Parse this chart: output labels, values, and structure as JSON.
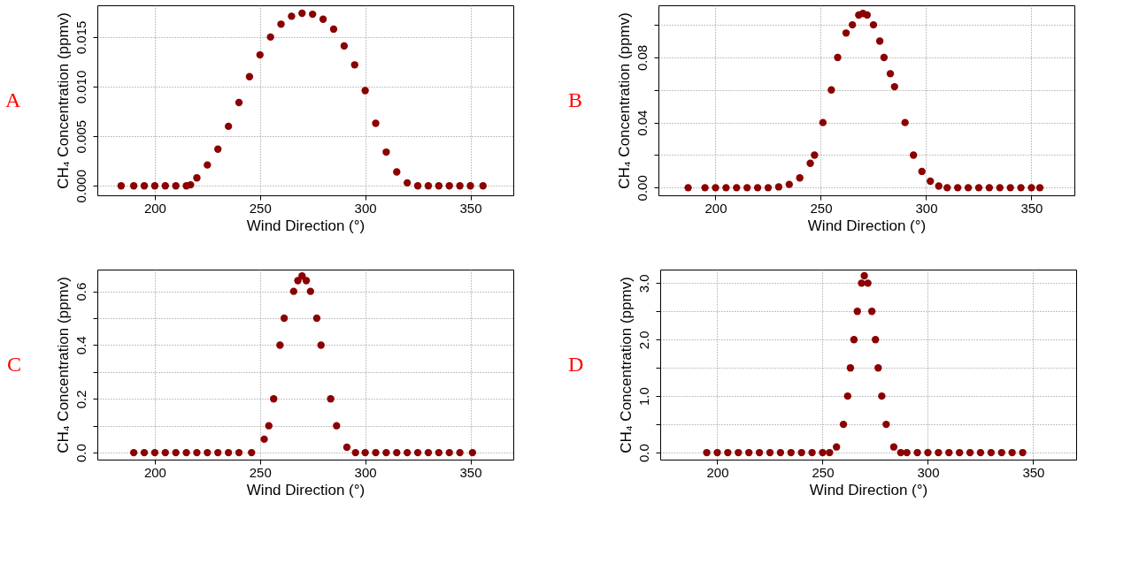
{
  "chart_data": [
    {
      "type": "scatter",
      "title": "A",
      "xlabel": "Wind Direction (°)",
      "ylabel": "CH₄ Concentration (ppmv)",
      "marker": "circle",
      "grid": true,
      "xlim": [
        172.7,
        370.4
      ],
      "xticks": [
        200,
        250,
        300,
        350
      ],
      "ylim": [
        -0.00096,
        0.0182
      ],
      "yticks": [
        {
          "value": 0,
          "label": "0.000"
        },
        {
          "value": 0.005,
          "label": "0.005"
        },
        {
          "value": 0.01,
          "label": "0.010"
        },
        {
          "value": 0.015,
          "label": "0.015"
        }
      ],
      "series": [
        {
          "color": "#8b0000",
          "x": [
            184,
            190,
            195,
            200,
            205,
            210,
            215,
            217,
            220,
            225,
            230,
            235,
            240,
            245,
            250,
            255,
            260,
            265,
            270,
            275,
            280,
            285,
            290,
            295,
            300,
            305,
            310,
            315,
            320,
            325,
            330,
            335,
            340,
            345,
            350,
            356
          ],
          "values": [
            0,
            0,
            0,
            0,
            0,
            0,
            0,
            0.0001,
            0.0008,
            0.0021,
            0.0037,
            0.006,
            0.0084,
            0.011,
            0.0132,
            0.015,
            0.0163,
            0.0171,
            0.0174,
            0.0173,
            0.0168,
            0.0158,
            0.0141,
            0.0122,
            0.0096,
            0.0063,
            0.0034,
            0.0014,
            0.0003,
            0,
            0,
            0,
            0,
            0,
            0,
            0
          ]
        }
      ]
    },
    {
      "type": "scatter",
      "title": "B",
      "xlabel": "Wind Direction (°)",
      "ylabel": "CH₄ Concentration (ppmv)",
      "marker": "circle",
      "grid": true,
      "xlim": [
        172.9,
        370.4
      ],
      "xticks": [
        200,
        250,
        300,
        350
      ],
      "ylim": [
        -0.0047,
        0.112
      ],
      "yticks": [
        {
          "value": 0,
          "label": "0.00"
        },
        {
          "value": 0.02,
          "label": null
        },
        {
          "value": 0.04,
          "label": "0.04"
        },
        {
          "value": 0.06,
          "label": null
        },
        {
          "value": 0.08,
          "label": "0.08"
        },
        {
          "value": 0.1,
          "label": null
        }
      ],
      "series": [
        {
          "color": "#8b0000",
          "x": [
            187,
            195,
            200,
            205,
            210,
            215,
            220,
            225,
            230,
            235,
            240,
            245,
            247,
            251,
            255,
            258,
            262,
            265,
            268,
            270,
            272,
            275,
            278,
            280,
            283,
            285,
            290,
            294,
            298,
            302,
            306,
            310,
            315,
            320,
            325,
            330,
            335,
            340,
            345,
            350,
            354
          ],
          "values": [
            0,
            0,
            0,
            0,
            0,
            0,
            0,
            0,
            0.0005,
            0.002,
            0.006,
            0.015,
            0.02,
            0.04,
            0.06,
            0.08,
            0.095,
            0.1,
            0.106,
            0.107,
            0.106,
            0.1,
            0.09,
            0.08,
            0.07,
            0.062,
            0.04,
            0.02,
            0.01,
            0.004,
            0.001,
            0,
            0,
            0,
            0,
            0,
            0,
            0,
            0,
            0,
            0
          ]
        }
      ]
    },
    {
      "type": "scatter",
      "title": "C",
      "xlabel": "Wind Direction (°)",
      "ylabel": "CH₄ Concentration (ppmv)",
      "marker": "circle",
      "grid": true,
      "xlim": [
        172.7,
        370.4
      ],
      "xticks": [
        200,
        250,
        300,
        350
      ],
      "ylim": [
        -0.026,
        0.681
      ],
      "yticks": [
        {
          "value": 0,
          "label": "0.0"
        },
        {
          "value": 0.1,
          "label": null
        },
        {
          "value": 0.2,
          "label": "0.2"
        },
        {
          "value": 0.3,
          "label": null
        },
        {
          "value": 0.4,
          "label": "0.4"
        },
        {
          "value": 0.5,
          "label": null
        },
        {
          "value": 0.6,
          "label": "0.6"
        }
      ],
      "series": [
        {
          "color": "#8b0000",
          "x": [
            190,
            195,
            200,
            205,
            210,
            215,
            220,
            225,
            230,
            235,
            240,
            246,
            252,
            254.2,
            256.5,
            259.5,
            261.5,
            266,
            268,
            270,
            272,
            274,
            277,
            279,
            283.6,
            286.4,
            291.3,
            295.4,
            300,
            305,
            310,
            315,
            320,
            325,
            330,
            335,
            340,
            345,
            351
          ],
          "values": [
            0,
            0,
            0,
            0,
            0,
            0,
            0,
            0,
            0,
            0,
            0,
            0,
            0.05,
            0.1,
            0.2,
            0.4,
            0.5,
            0.6,
            0.64,
            0.657,
            0.64,
            0.6,
            0.5,
            0.4,
            0.2,
            0.1,
            0.02,
            0,
            0,
            0,
            0,
            0,
            0,
            0,
            0,
            0,
            0,
            0,
            0
          ]
        }
      ]
    },
    {
      "type": "scatter",
      "title": "D",
      "xlabel": "Wind Direction (°)",
      "ylabel": "CH₄ Concentration (ppmv)",
      "marker": "circle",
      "grid": true,
      "xlim": [
        172.9,
        370.4
      ],
      "xticks": [
        200,
        250,
        300,
        350
      ],
      "ylim": [
        -0.124,
        3.24
      ],
      "yticks": [
        {
          "value": 0,
          "label": "0.0"
        },
        {
          "value": 0.5,
          "label": null
        },
        {
          "value": 1,
          "label": "1.0"
        },
        {
          "value": 1.5,
          "label": null
        },
        {
          "value": 2,
          "label": "2.0"
        },
        {
          "value": 2.5,
          "label": null
        },
        {
          "value": 3,
          "label": "3.0"
        }
      ],
      "series": [
        {
          "color": "#8b0000",
          "x": [
            195,
            200,
            205,
            210,
            215,
            220,
            225,
            230,
            235,
            240,
            245,
            250,
            253.3,
            256.6,
            259.9,
            261.9,
            263.2,
            264.9,
            266.5,
            268.5,
            269.8,
            271.5,
            273.4,
            275.1,
            276.4,
            278.1,
            280.2,
            283.8,
            287.1,
            290,
            295,
            300,
            305,
            310,
            315,
            320,
            325,
            330,
            335,
            340,
            345
          ],
          "values": [
            0,
            0,
            0,
            0,
            0,
            0,
            0,
            0,
            0,
            0,
            0,
            0,
            0,
            0.1,
            0.5,
            1,
            1.5,
            2,
            2.5,
            3,
            3.13,
            3,
            2.5,
            2,
            1.5,
            1,
            0.5,
            0.1,
            0,
            0,
            0,
            0,
            0,
            0,
            0,
            0,
            0,
            0,
            0,
            0,
            0
          ]
        }
      ]
    }
  ]
}
